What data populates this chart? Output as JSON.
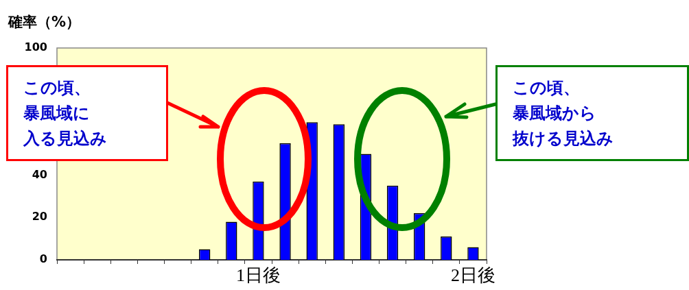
{
  "chart_data": {
    "type": "bar",
    "ylabel": "確率（%）",
    "categories": [
      null,
      null,
      null,
      null,
      null,
      null,
      null,
      "1日後",
      null,
      null,
      null,
      null,
      null,
      null,
      null,
      "2日後"
    ],
    "values": [
      null,
      null,
      null,
      null,
      null,
      5,
      18,
      37,
      55,
      65,
      64,
      50,
      35,
      22,
      11,
      6
    ],
    "color": "#0000ff",
    "ylim": [
      0,
      100
    ],
    "yticks": [
      0,
      20,
      40,
      100
    ],
    "grid": false,
    "legend": false,
    "annotations": [
      "この頃、",
      "暴風域に",
      "入る見込み",
      "この頃、",
      "暴風域から",
      "抜ける見込み"
    ]
  }
}
